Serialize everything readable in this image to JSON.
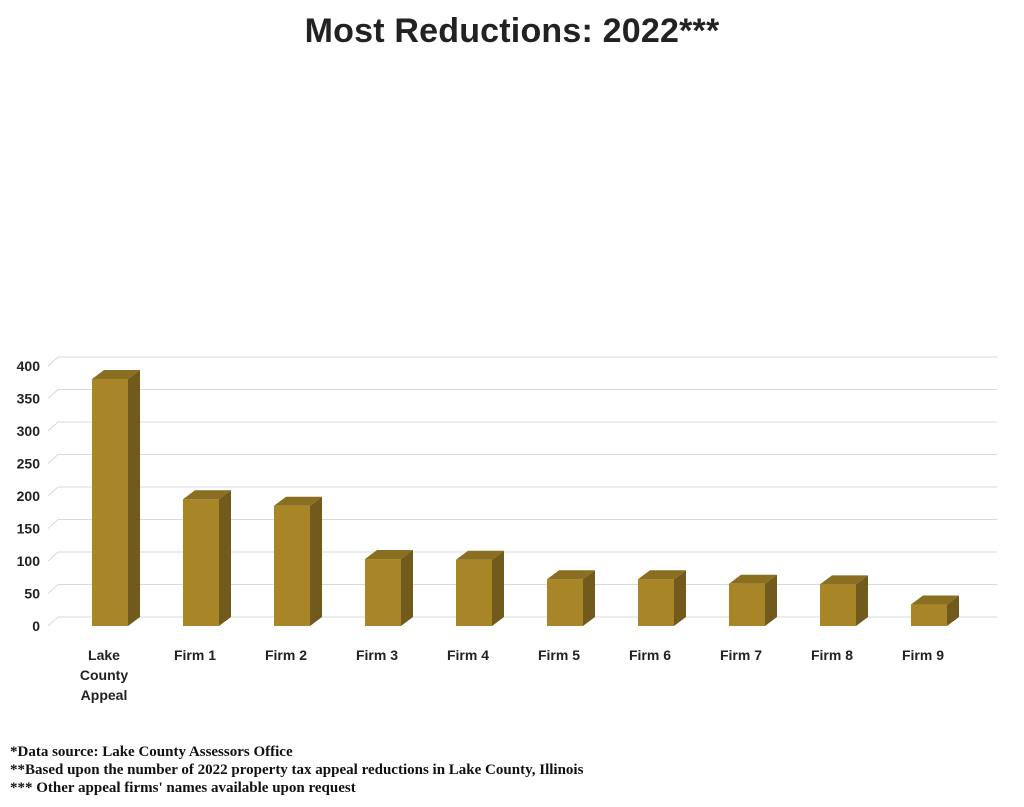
{
  "chart_data": {
    "type": "bar",
    "title": "Most Reductions: 2022***",
    "xlabel": "",
    "ylabel": "",
    "categories": [
      "Lake County Appeal",
      "Firm 1",
      "Firm 2",
      "Firm 3",
      "Firm 4",
      "Firm 5",
      "Firm 6",
      "Firm 7",
      "Firm 8",
      "Firm 9"
    ],
    "values": [
      380,
      195,
      185,
      103,
      102,
      72,
      72,
      65,
      64,
      33
    ],
    "ylim": [
      0,
      400
    ],
    "yticks": [
      0,
      50,
      100,
      150,
      200,
      250,
      300,
      350,
      400
    ],
    "grid": true,
    "legend": "none",
    "style": "3d-column",
    "colors": {
      "bar_front": "#A88526",
      "bar_side": "#715A1C",
      "bar_top": "#8A6E22",
      "gridline": "#D9D9D9"
    }
  },
  "footnotes": [
    "*Data source: Lake County Assessors Office",
    "**Based upon the number of 2022 property tax appeal reductions in Lake County, Illinois",
    "*** Other appeal firms' names available upon request"
  ]
}
